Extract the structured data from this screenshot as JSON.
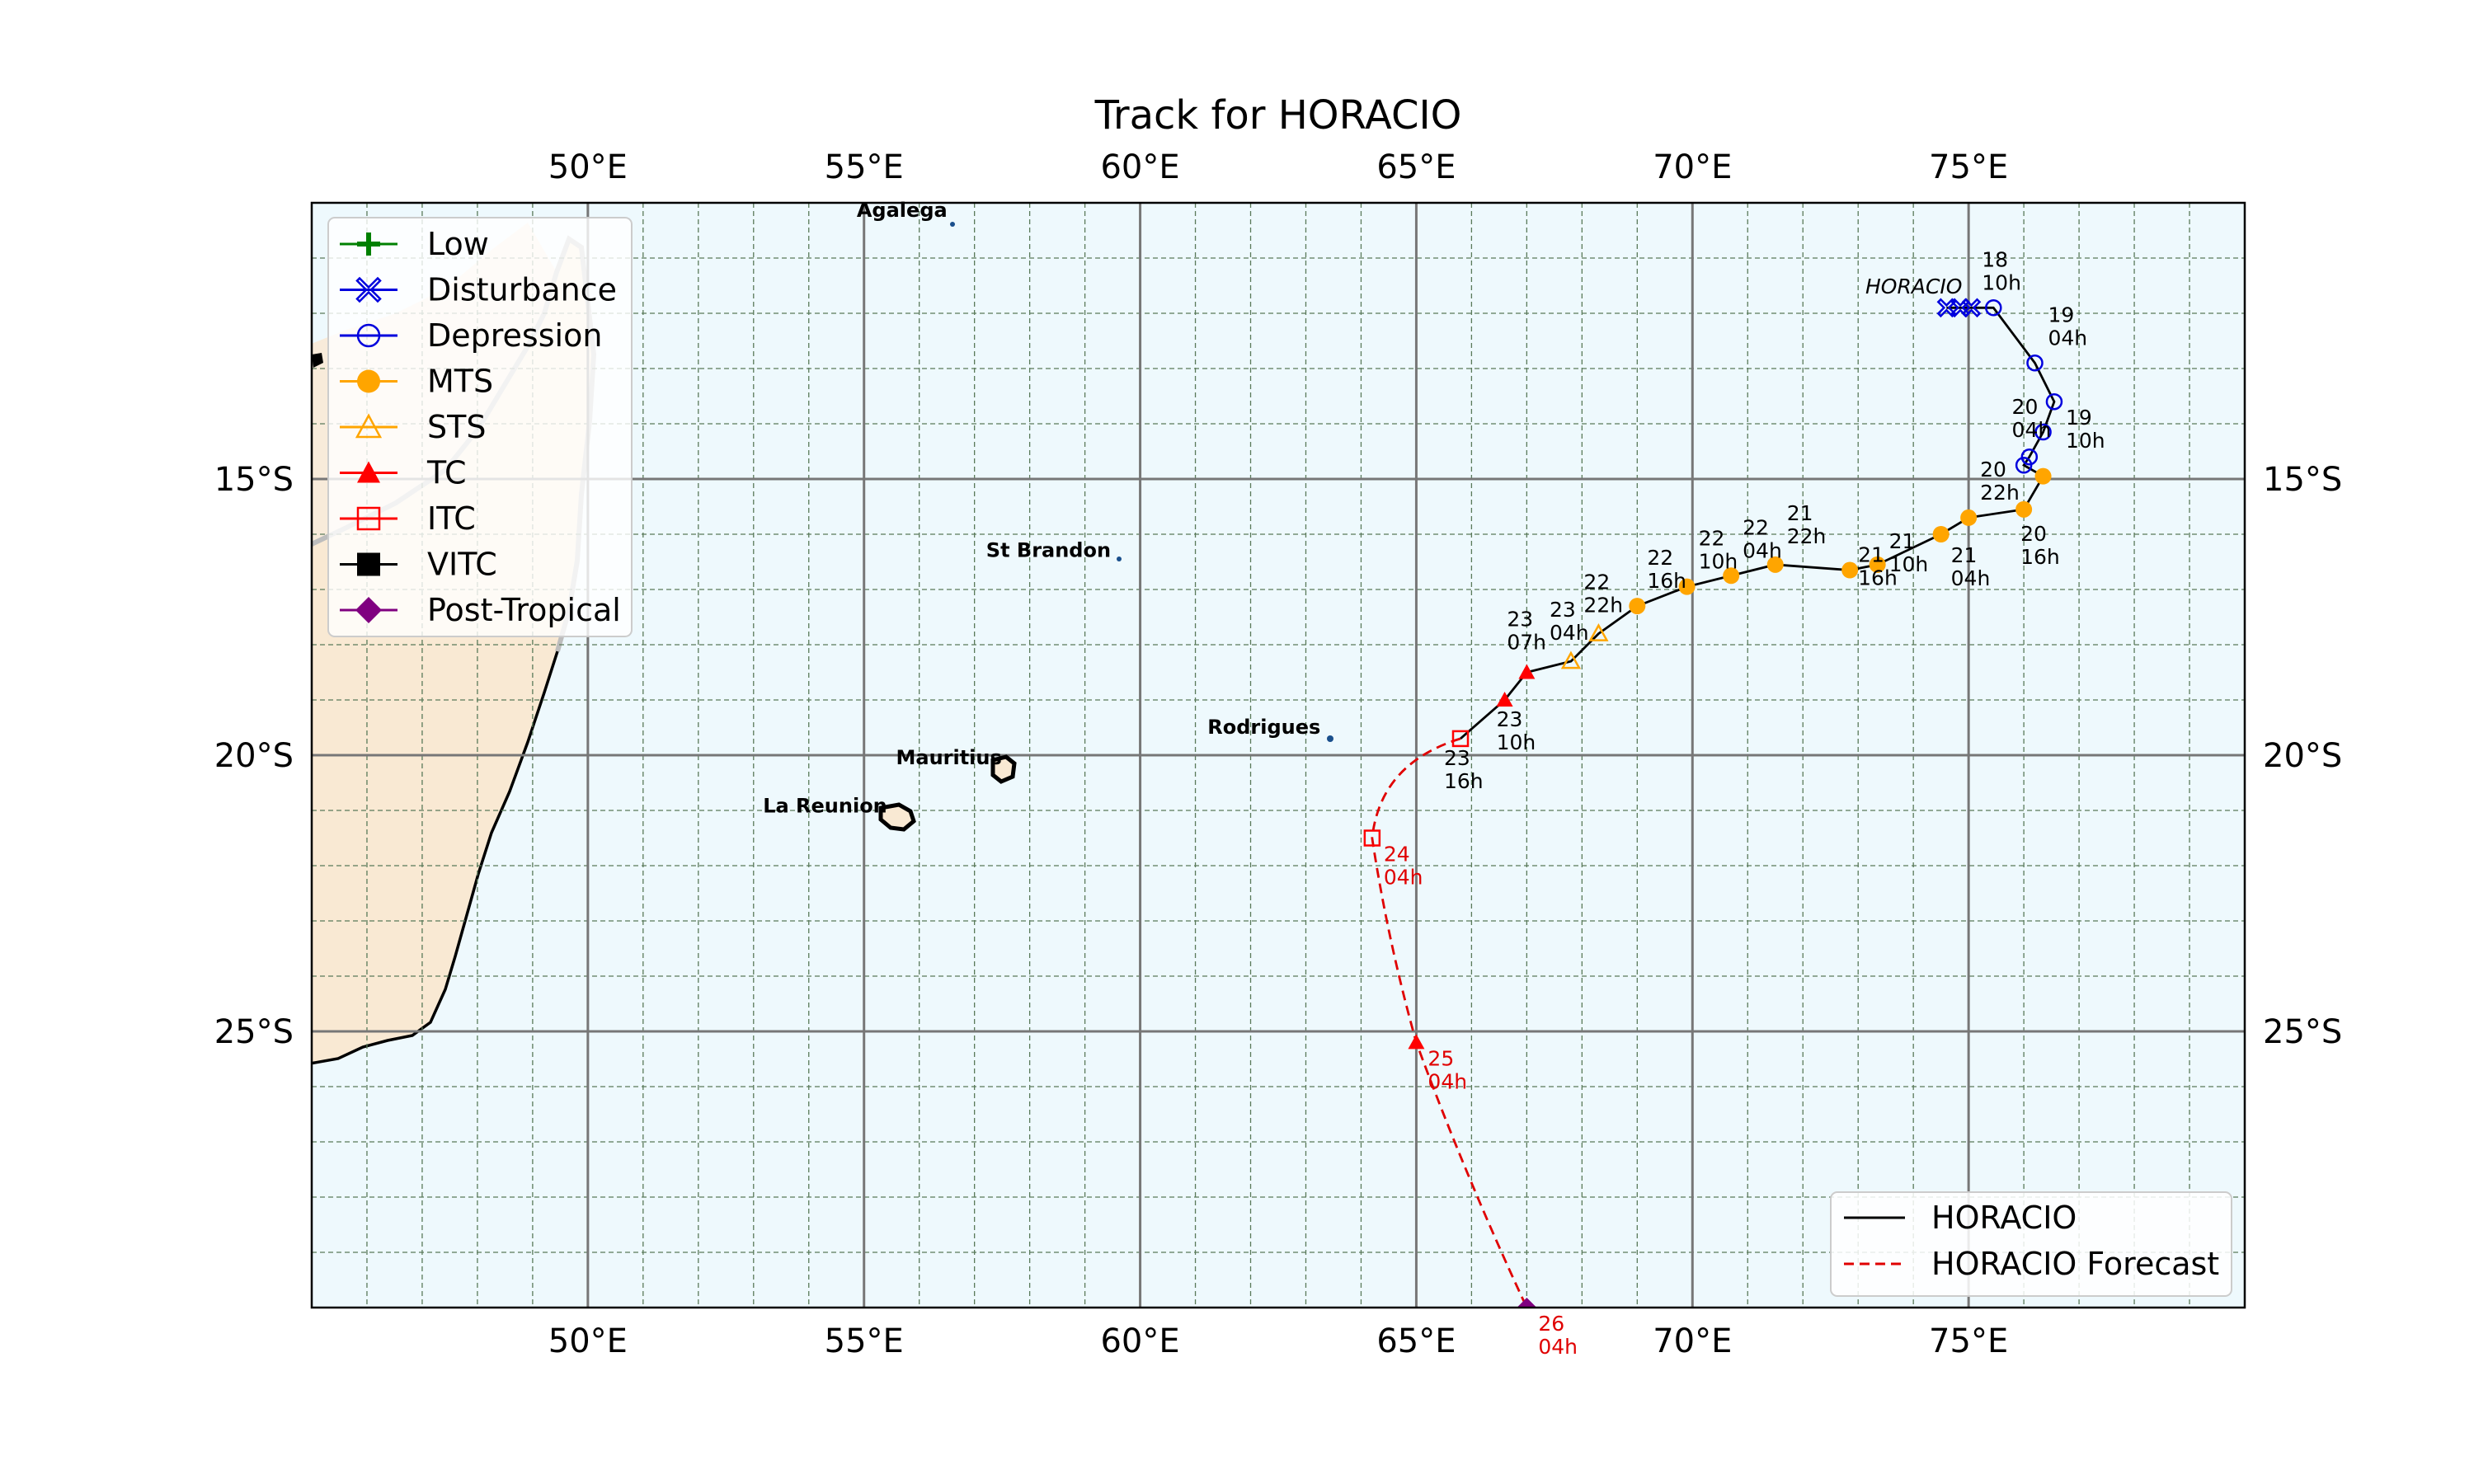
{
  "map": {
    "title": "Track for HORACIO",
    "lon_ticks": [
      "50°E",
      "55°E",
      "60°E",
      "65°E",
      "70°E",
      "75°E"
    ],
    "lat_ticks": [
      "15°S",
      "20°S",
      "25°S"
    ],
    "extent": {
      "lon": [
        45,
        80
      ],
      "lat": [
        -30,
        -10
      ]
    },
    "colors": {
      "ocean": "#eef9fd",
      "land": "#f9e9d3",
      "coast": "#000000",
      "grid_major": "#777777",
      "grid_minor": "#5a7a5a"
    }
  },
  "places": [
    {
      "name": "Agalega",
      "lon": 56.6,
      "lat": -10.4
    },
    {
      "name": "St Brandon",
      "lon": 59.6,
      "lat": -16.5
    },
    {
      "name": "Rodrigues",
      "lon": 63.4,
      "lat": -19.7
    },
    {
      "name": "Mauritius",
      "lon": 57.55,
      "lat": -20.25
    },
    {
      "name": "La Reunion",
      "lon": 55.5,
      "lat": -21.1
    }
  ],
  "storm_label": "HORACIO",
  "track_observed": [
    {
      "lon": 74.6,
      "lat": -11.9,
      "cat": "Disturbance"
    },
    {
      "lon": 74.85,
      "lat": -11.9,
      "cat": "Disturbance"
    },
    {
      "lon": 75.05,
      "lat": -11.9,
      "cat": "Disturbance"
    },
    {
      "lon": 75.45,
      "lat": -11.9,
      "cat": "Depression",
      "label": [
        "18",
        "10h"
      ]
    },
    {
      "lon": 76.2,
      "lat": -12.9,
      "cat": "Depression",
      "label": [
        "19",
        "04h"
      ]
    },
    {
      "lon": 76.55,
      "lat": -13.6,
      "cat": "Depression",
      "label": [
        "19",
        "10h"
      ]
    },
    {
      "lon": 76.35,
      "lat": -14.15,
      "cat": "Depression",
      "label": [
        "20",
        "04h"
      ]
    },
    {
      "lon": 76.1,
      "lat": -14.6,
      "cat": "Depression"
    },
    {
      "lon": 76.0,
      "lat": -14.75,
      "cat": "Depression"
    },
    {
      "lon": 76.35,
      "lat": -14.95,
      "cat": "MTS"
    },
    {
      "lon": 76.0,
      "lat": -15.55,
      "cat": "MTS",
      "label": [
        "20",
        "16h"
      ]
    },
    {
      "lon": 75.0,
      "lat": -15.7,
      "cat": "MTS",
      "label": [
        "20",
        "22h"
      ]
    },
    {
      "lon": 74.5,
      "lat": -16.0,
      "cat": "MTS",
      "label": [
        "21",
        "04h"
      ]
    },
    {
      "lon": 73.35,
      "lat": -16.55,
      "cat": "MTS",
      "label": [
        "21",
        "10h"
      ]
    },
    {
      "lon": 72.85,
      "lat": -16.65,
      "cat": "MTS",
      "label": [
        "21",
        "16h"
      ]
    },
    {
      "lon": 71.5,
      "lat": -16.55,
      "cat": "MTS",
      "label": [
        "21",
        "22h"
      ]
    },
    {
      "lon": 70.7,
      "lat": -16.75,
      "cat": "MTS",
      "label": [
        "22",
        "04h"
      ]
    },
    {
      "lon": 69.9,
      "lat": -16.95,
      "cat": "MTS",
      "label": [
        "22",
        "10h"
      ]
    },
    {
      "lon": 69.0,
      "lat": -17.3,
      "cat": "MTS",
      "label": [
        "22",
        "16h"
      ]
    },
    {
      "lon": 68.3,
      "lat": -17.8,
      "cat": "STS",
      "label": [
        "22",
        "22h"
      ]
    },
    {
      "lon": 67.8,
      "lat": -18.3,
      "cat": "STS",
      "label": [
        "23",
        "04h"
      ]
    },
    {
      "lon": 67.0,
      "lat": -18.5,
      "cat": "TC",
      "label": [
        "23",
        "07h"
      ]
    },
    {
      "lon": 66.6,
      "lat": -19.0,
      "cat": "TC",
      "label": [
        "23",
        "10h"
      ]
    },
    {
      "lon": 65.8,
      "lat": -19.7,
      "cat": "ITC",
      "label": [
        "23",
        "16h"
      ]
    }
  ],
  "track_forecast": [
    {
      "lon": 65.8,
      "lat": -19.7,
      "cat": "ITC"
    },
    {
      "lon": 64.2,
      "lat": -21.5,
      "cat": "ITC",
      "label": [
        "24",
        "04h"
      ]
    },
    {
      "lon": 65.0,
      "lat": -25.2,
      "cat": "TC",
      "label": [
        "25",
        "04h"
      ]
    },
    {
      "lon": 67.0,
      "lat": -30.0,
      "cat": "Post-Tropical",
      "label": [
        "26",
        "04h"
      ]
    }
  ],
  "category_legend": [
    {
      "label": "Low",
      "marker": "plus",
      "color": "#008000"
    },
    {
      "label": "Disturbance",
      "marker": "hollow-x",
      "color": "#0000dd"
    },
    {
      "label": "Depression",
      "marker": "circle-open",
      "color": "#0000dd"
    },
    {
      "label": "MTS",
      "marker": "circle-filled",
      "color": "#ffa500"
    },
    {
      "label": "STS",
      "marker": "triangle-open",
      "color": "#ffa500"
    },
    {
      "label": "TC",
      "marker": "triangle-filled",
      "color": "#ff0000"
    },
    {
      "label": "ITC",
      "marker": "square-open",
      "color": "#ff0000"
    },
    {
      "label": "VITC",
      "marker": "square-filled",
      "color": "#000000"
    },
    {
      "label": "Post-Tropical",
      "marker": "diamond-filled",
      "color": "#800080"
    }
  ],
  "track_legend": [
    {
      "label": "HORACIO",
      "style": "solid",
      "color": "#000000"
    },
    {
      "label": "HORACIO Forecast",
      "style": "dashed",
      "color": "#e00000"
    }
  ]
}
